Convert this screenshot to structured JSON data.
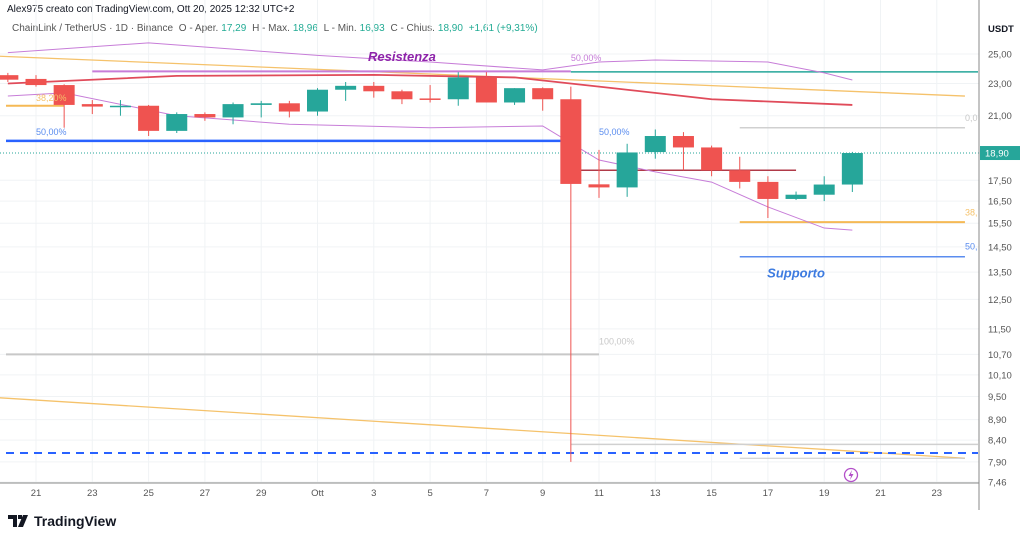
{
  "header": {
    "attribution": "Alex975 creato con TradingView.com, Ott 20, 2025 12:32 UTC+2"
  },
  "legend": {
    "symbol": "ChainLink / TetherUS · 1D · Binance",
    "open_label": "O - Aper.",
    "open": "17,29",
    "high_label": "H - Max.",
    "high": "18,96",
    "low_label": "L - Min.",
    "low": "16,93",
    "close_label": "C - Chius.",
    "close": "18,90",
    "change": "+1,61 (+9,31%)"
  },
  "logo": {
    "text": "TradingView"
  },
  "colors": {
    "up": "#26a69a",
    "down": "#ef5350",
    "ma": "#e04b5a",
    "bands": "#c77dd8",
    "resistance": "#9c27b0",
    "support": "#3d7be0",
    "trend": "#f5b955",
    "fib_blue": "#2962ff"
  },
  "chart_data": {
    "type": "candlestick",
    "currency": "USDT",
    "y_scale": "log",
    "ylim": [
      7.46,
      25.6
    ],
    "grid": true,
    "last_price": {
      "value": 18.9,
      "label": "18,90"
    },
    "y_ticks": [
      {
        "value": 25.0,
        "label": "25,00"
      },
      {
        "value": 23.0,
        "label": "23,00"
      },
      {
        "value": 21.0,
        "label": "21,00"
      },
      {
        "value": 17.5,
        "label": "17,50"
      },
      {
        "value": 16.5,
        "label": "16,50"
      },
      {
        "value": 15.5,
        "label": "15,50"
      },
      {
        "value": 14.5,
        "label": "14,50"
      },
      {
        "value": 13.5,
        "label": "13,50"
      },
      {
        "value": 12.5,
        "label": "12,50"
      },
      {
        "value": 11.5,
        "label": "11,50"
      },
      {
        "value": 10.7,
        "label": "10,70"
      },
      {
        "value": 10.1,
        "label": "10,10"
      },
      {
        "value": 9.5,
        "label": "9,50"
      },
      {
        "value": 8.9,
        "label": "8,90"
      },
      {
        "value": 8.4,
        "label": "8,40"
      },
      {
        "value": 7.9,
        "label": "7,90"
      },
      {
        "value": 7.46,
        "label": "7,46"
      }
    ],
    "x_ticks": [
      {
        "date": "2025-09-21",
        "label": "21"
      },
      {
        "date": "2025-09-23",
        "label": "23"
      },
      {
        "date": "2025-09-25",
        "label": "25"
      },
      {
        "date": "2025-09-27",
        "label": "27"
      },
      {
        "date": "2025-09-29",
        "label": "29"
      },
      {
        "date": "2025-10-01",
        "label": "Ott"
      },
      {
        "date": "2025-10-03",
        "label": "3"
      },
      {
        "date": "2025-10-05",
        "label": "5"
      },
      {
        "date": "2025-10-07",
        "label": "7"
      },
      {
        "date": "2025-10-09",
        "label": "9"
      },
      {
        "date": "2025-10-11",
        "label": "11"
      },
      {
        "date": "2025-10-13",
        "label": "13"
      },
      {
        "date": "2025-10-15",
        "label": "15"
      },
      {
        "date": "2025-10-17",
        "label": "17"
      },
      {
        "date": "2025-10-19",
        "label": "19"
      },
      {
        "date": "2025-10-21",
        "label": "21"
      },
      {
        "date": "2025-10-23",
        "label": "23"
      }
    ],
    "candles": [
      {
        "date": "2025-09-20",
        "o": 23.55,
        "h": 23.7,
        "l": 23.1,
        "c": 23.25
      },
      {
        "date": "2025-09-21",
        "o": 23.3,
        "h": 23.55,
        "l": 22.8,
        "c": 22.9
      },
      {
        "date": "2025-09-22",
        "o": 22.9,
        "h": 22.95,
        "l": 20.3,
        "c": 21.65
      },
      {
        "date": "2025-09-23",
        "o": 21.7,
        "h": 21.95,
        "l": 21.1,
        "c": 21.55
      },
      {
        "date": "2025-09-24",
        "o": 21.55,
        "h": 21.95,
        "l": 21.0,
        "c": 21.6
      },
      {
        "date": "2025-09-25",
        "o": 21.6,
        "h": 21.65,
        "l": 19.83,
        "c": 20.12
      },
      {
        "date": "2025-09-26",
        "o": 20.12,
        "h": 21.2,
        "l": 20.0,
        "c": 21.1
      },
      {
        "date": "2025-09-27",
        "o": 21.1,
        "h": 21.2,
        "l": 20.7,
        "c": 20.9
      },
      {
        "date": "2025-09-28",
        "o": 20.9,
        "h": 21.8,
        "l": 20.5,
        "c": 21.7
      },
      {
        "date": "2025-09-29",
        "o": 21.65,
        "h": 21.9,
        "l": 20.9,
        "c": 21.75
      },
      {
        "date": "2025-09-30",
        "o": 21.75,
        "h": 21.9,
        "l": 20.9,
        "c": 21.25
      },
      {
        "date": "2025-10-01",
        "o": 21.25,
        "h": 22.7,
        "l": 21.0,
        "c": 22.6
      },
      {
        "date": "2025-10-02",
        "o": 22.6,
        "h": 23.1,
        "l": 21.9,
        "c": 22.85
      },
      {
        "date": "2025-10-03",
        "o": 22.85,
        "h": 23.1,
        "l": 22.1,
        "c": 22.5
      },
      {
        "date": "2025-10-04",
        "o": 22.5,
        "h": 22.6,
        "l": 21.7,
        "c": 22.0
      },
      {
        "date": "2025-10-05",
        "o": 22.05,
        "h": 22.9,
        "l": 21.8,
        "c": 22.0
      },
      {
        "date": "2025-10-06",
        "o": 22.0,
        "h": 23.75,
        "l": 21.6,
        "c": 23.4
      },
      {
        "date": "2025-10-07",
        "o": 23.4,
        "h": 23.75,
        "l": 21.8,
        "c": 21.8
      },
      {
        "date": "2025-10-08",
        "o": 21.8,
        "h": 22.7,
        "l": 21.65,
        "c": 22.7
      },
      {
        "date": "2025-10-09",
        "o": 22.7,
        "h": 22.75,
        "l": 21.3,
        "c": 22.0
      },
      {
        "date": "2025-10-10",
        "o": 22.0,
        "h": 22.8,
        "l": 7.9,
        "c": 17.32
      },
      {
        "date": "2025-10-11",
        "o": 17.3,
        "h": 19.07,
        "l": 16.65,
        "c": 17.15
      },
      {
        "date": "2025-10-12",
        "o": 17.15,
        "h": 19.4,
        "l": 16.7,
        "c": 18.93
      },
      {
        "date": "2025-10-13",
        "o": 18.95,
        "h": 20.2,
        "l": 18.6,
        "c": 19.83
      },
      {
        "date": "2025-10-14",
        "o": 19.83,
        "h": 20.05,
        "l": 18.0,
        "c": 19.2
      },
      {
        "date": "2025-10-15",
        "o": 19.2,
        "h": 19.3,
        "l": 17.7,
        "c": 18.0
      },
      {
        "date": "2025-10-16",
        "o": 18.0,
        "h": 18.7,
        "l": 17.1,
        "c": 17.42
      },
      {
        "date": "2025-10-17",
        "o": 17.42,
        "h": 17.7,
        "l": 15.73,
        "c": 16.6
      },
      {
        "date": "2025-10-18",
        "o": 16.6,
        "h": 16.95,
        "l": 16.55,
        "c": 16.8
      },
      {
        "date": "2025-10-19",
        "o": 16.8,
        "h": 17.7,
        "l": 16.5,
        "c": 17.29
      },
      {
        "date": "2025-10-20",
        "o": 17.29,
        "h": 18.96,
        "l": 16.93,
        "c": 18.9
      }
    ],
    "moving_average": [
      [
        "2025-09-20",
        23.0
      ],
      [
        "2025-09-26",
        23.5
      ],
      [
        "2025-10-03",
        23.57
      ],
      [
        "2025-10-08",
        23.4
      ],
      [
        "2025-10-11",
        22.8
      ],
      [
        "2025-10-15",
        22.0
      ],
      [
        "2025-10-20",
        21.65
      ]
    ],
    "band_upper": [
      [
        "2025-09-20",
        25.1
      ],
      [
        "2025-09-25",
        25.8
      ],
      [
        "2025-10-01",
        24.9
      ],
      [
        "2025-10-05",
        24.44
      ],
      [
        "2025-10-09",
        23.9
      ],
      [
        "2025-10-11",
        24.44
      ],
      [
        "2025-10-13",
        24.58
      ],
      [
        "2025-10-17",
        24.44
      ],
      [
        "2025-10-19",
        23.7
      ],
      [
        "2025-10-20",
        23.23
      ]
    ],
    "band_lower": [
      [
        "2025-09-20",
        22.2
      ],
      [
        "2025-09-22",
        22.4
      ],
      [
        "2025-09-26",
        21.0
      ],
      [
        "2025-09-30",
        20.5
      ],
      [
        "2025-10-05",
        20.3
      ],
      [
        "2025-10-09",
        20.4
      ],
      [
        "2025-10-11",
        18.53
      ],
      [
        "2025-10-13",
        17.92
      ],
      [
        "2025-10-15",
        17.41
      ],
      [
        "2025-10-17",
        16.23
      ],
      [
        "2025-10-19",
        15.29
      ],
      [
        "2025-10-20",
        15.2
      ]
    ],
    "drawings": [
      {
        "kind": "trend",
        "color": "#f5c26b",
        "from": [
          "2025-09-19",
          24.9
        ],
        "to": [
          "2025-10-24",
          22.2
        ]
      },
      {
        "kind": "trend",
        "color": "#f5c26b",
        "from": [
          "2025-09-19",
          9.5
        ],
        "to": [
          "2025-10-24",
          7.98
        ]
      },
      {
        "kind": "hline",
        "color": "#c77dd8",
        "price": 23.8,
        "from": "2025-09-23",
        "to": "2025-10-10",
        "width": 2
      },
      {
        "kind": "hline",
        "color": "#26a69a",
        "price": 23.77,
        "from": "2025-10-10",
        "to": "2025-10-25",
        "width": 1.5
      },
      {
        "kind": "hline",
        "color": "#2962ff",
        "price": 19.56,
        "from": "2025-09-19",
        "to": "2025-10-10",
        "width": 2.5
      },
      {
        "kind": "hline",
        "color": "#f5b955",
        "price": 21.6,
        "from": "2025-09-19",
        "to": "2025-09-22",
        "width": 2
      },
      {
        "kind": "hline",
        "color": "#c8c8c8",
        "price": 10.7,
        "from": "2025-09-19",
        "to": "2025-10-11",
        "width": 2
      },
      {
        "kind": "hline",
        "color": "#d0d0d0",
        "price": 20.3,
        "from": "2025-10-16",
        "to": "2025-10-24",
        "width": 1.5
      },
      {
        "kind": "hline",
        "color": "#f5b955",
        "price": 15.55,
        "from": "2025-10-16",
        "to": "2025-10-24",
        "width": 2
      },
      {
        "kind": "hline",
        "color": "#5b8def",
        "price": 14.1,
        "from": "2025-10-16",
        "to": "2025-10-24",
        "width": 1.5
      },
      {
        "kind": "hline",
        "color": "#b03a48",
        "price": 18.0,
        "from": "2025-10-10",
        "to": "2025-10-18",
        "width": 1.5
      },
      {
        "kind": "hline",
        "color": "#d0d0d0",
        "price": 8.3,
        "from": "2025-10-10",
        "to": "2025-10-25",
        "width": 1.5
      },
      {
        "kind": "hline",
        "color": "#c8c8c8",
        "price": 7.98,
        "from": "2025-10-16",
        "to": "2025-10-24",
        "width": 1
      },
      {
        "kind": "dashed",
        "color": "#2962ff",
        "price": 8.1,
        "from": "2025-09-19",
        "to": "2025-10-25",
        "width": 2
      }
    ],
    "annotations": [
      {
        "text": "Resistenza",
        "date": "2025-10-04",
        "price": 24.5,
        "color": "#8e24aa",
        "style": "label"
      },
      {
        "text": "Supporto",
        "date": "2025-10-18",
        "price": 13.3,
        "color": "#3d7be0",
        "style": "label"
      },
      {
        "text": "50,00%",
        "date": "2025-10-10",
        "price": 24.5,
        "color": "#c77dd8",
        "style": "fib"
      },
      {
        "text": "50,00%",
        "date": "2025-10-11",
        "price": 19.9,
        "color": "#5b8def",
        "style": "fib"
      },
      {
        "text": "50,00%",
        "date": "2025-09-21",
        "price": 19.9,
        "color": "#5b8def",
        "style": "fib"
      },
      {
        "text": "38,20%",
        "date": "2025-09-21",
        "price": 21.9,
        "color": "#f5c26b",
        "style": "fib"
      },
      {
        "text": "100,00%",
        "date": "2025-10-11",
        "price": 11.0,
        "color": "#c8c8c8",
        "style": "fib"
      },
      {
        "text": "0,0",
        "date": "2025-10-24",
        "price": 20.7,
        "color": "#c8c8c8",
        "style": "fib"
      },
      {
        "text": "38,",
        "date": "2025-10-24",
        "price": 15.85,
        "color": "#f5c26b",
        "style": "fib"
      },
      {
        "text": "50,",
        "date": "2025-10-24",
        "price": 14.4,
        "color": "#5b8def",
        "style": "fib"
      }
    ]
  }
}
